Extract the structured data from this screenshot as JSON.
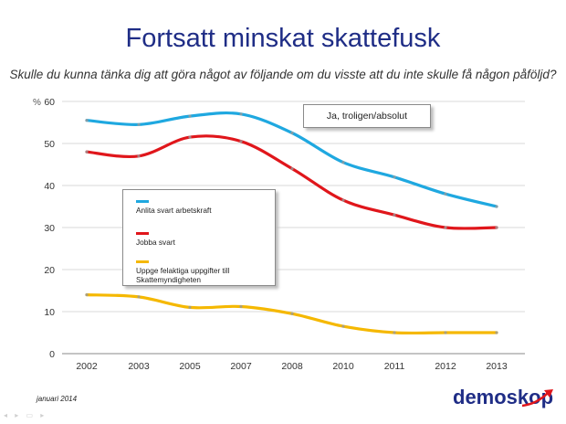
{
  "header": {
    "title": "Fortsatt minskat skattefusk",
    "subtitle": "Skulle du kunna tänka dig att göra något av följande om du visste att du inte skulle få någon påföljd?"
  },
  "badge": "Ja, troligen/absolut",
  "footer": {
    "date": "januari 2014",
    "logo": "demoskop"
  },
  "colors": {
    "title": "#1f2d86",
    "blue": "#1fa8e0",
    "red": "#e0161b",
    "yellow": "#f5b800"
  },
  "chart_data": {
    "type": "line",
    "categories": [
      "2002",
      "2003",
      "2005",
      "2007",
      "2008",
      "2010",
      "2011",
      "2012",
      "2013"
    ],
    "ylim": [
      0,
      60
    ],
    "yticks": [
      0,
      10,
      20,
      30,
      40,
      50,
      60
    ],
    "ylabel": "%",
    "grid": true,
    "legend_position": "left-middle",
    "series": [
      {
        "name": "Anlita svart arbetskraft",
        "color": "#1fa8e0",
        "values": [
          55.5,
          54.5,
          56.5,
          57,
          52.5,
          45.5,
          42,
          38,
          35
        ]
      },
      {
        "name": "Jobba svart",
        "color": "#e0161b",
        "values": [
          48,
          47,
          51.5,
          50.5,
          44,
          36.5,
          33,
          30,
          30
        ]
      },
      {
        "name": "Uppge felaktiga uppgifter till Skattemyndigheten",
        "color": "#f5b800",
        "values": [
          14,
          13.5,
          11,
          11.2,
          9.5,
          6.5,
          5,
          5,
          5
        ]
      }
    ]
  }
}
